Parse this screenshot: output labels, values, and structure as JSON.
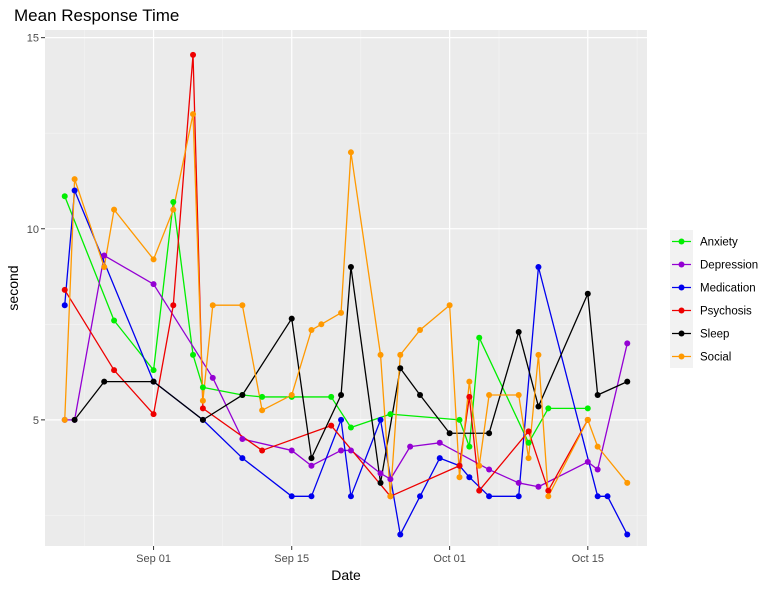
{
  "chart_data": {
    "type": "line",
    "title": "Mean Response Time",
    "xlabel": "Date",
    "ylabel": "second",
    "x_axis_type": "date",
    "year": 2017,
    "xlim": [
      "2017-08-21",
      "2017-10-21"
    ],
    "ylim": [
      1.7,
      15.2
    ],
    "x_ticks": [
      {
        "date": "2017-09-01",
        "label": "Sep 01"
      },
      {
        "date": "2017-09-15",
        "label": "Sep 15"
      },
      {
        "date": "2017-10-01",
        "label": "Oct 01"
      },
      {
        "date": "2017-10-15",
        "label": "Oct 15"
      }
    ],
    "y_ticks": [
      5,
      10,
      15
    ],
    "grid": true,
    "legend_position": "right",
    "series": [
      {
        "name": "Anxiety",
        "color": "#00ee00",
        "points": [
          [
            "2017-08-23",
            10.85
          ],
          [
            "2017-08-28",
            7.6
          ],
          [
            "2017-09-01",
            6.3
          ],
          [
            "2017-09-03",
            10.7
          ],
          [
            "2017-09-05",
            6.7
          ],
          [
            "2017-09-06",
            5.85
          ],
          [
            "2017-09-10",
            5.65
          ],
          [
            "2017-09-12",
            5.6
          ],
          [
            "2017-09-15",
            5.6
          ],
          [
            "2017-09-19",
            5.6
          ],
          [
            "2017-09-21",
            4.8
          ],
          [
            "2017-09-25",
            5.15
          ],
          [
            "2017-10-02",
            5.0
          ],
          [
            "2017-10-03",
            4.3
          ],
          [
            "2017-10-04",
            7.15
          ],
          [
            "2017-10-09",
            4.4
          ],
          [
            "2017-10-11",
            5.3
          ],
          [
            "2017-10-15",
            5.3
          ]
        ]
      },
      {
        "name": "Depression",
        "color": "#9400d3",
        "points": [
          [
            "2017-08-23",
            5.0
          ],
          [
            "2017-08-24",
            5.0
          ],
          [
            "2017-08-27",
            9.3
          ],
          [
            "2017-09-01",
            8.55
          ],
          [
            "2017-09-07",
            6.1
          ],
          [
            "2017-09-10",
            4.5
          ],
          [
            "2017-09-15",
            4.2
          ],
          [
            "2017-09-17",
            3.8
          ],
          [
            "2017-09-20",
            4.2
          ],
          [
            "2017-09-21",
            4.2
          ],
          [
            "2017-09-24",
            3.6
          ],
          [
            "2017-09-25",
            3.45
          ],
          [
            "2017-09-27",
            4.3
          ],
          [
            "2017-09-30",
            4.4
          ],
          [
            "2017-10-05",
            3.7
          ],
          [
            "2017-10-08",
            3.35
          ],
          [
            "2017-10-10",
            3.25
          ],
          [
            "2017-10-15",
            3.9
          ],
          [
            "2017-10-16",
            3.7
          ],
          [
            "2017-10-19",
            7.0
          ]
        ]
      },
      {
        "name": "Medication",
        "color": "#0000ee",
        "points": [
          [
            "2017-08-23",
            8.0
          ],
          [
            "2017-08-24",
            11.0
          ],
          [
            "2017-09-01",
            6.0
          ],
          [
            "2017-09-06",
            5.0
          ],
          [
            "2017-09-10",
            4.0
          ],
          [
            "2017-09-15",
            3.0
          ],
          [
            "2017-09-17",
            3.0
          ],
          [
            "2017-09-20",
            5.0
          ],
          [
            "2017-09-21",
            3.0
          ],
          [
            "2017-09-24",
            5.0
          ],
          [
            "2017-09-26",
            2.0
          ],
          [
            "2017-09-28",
            3.0
          ],
          [
            "2017-09-30",
            4.0
          ],
          [
            "2017-10-02",
            3.8
          ],
          [
            "2017-10-03",
            3.5
          ],
          [
            "2017-10-05",
            3.0
          ],
          [
            "2017-10-08",
            3.0
          ],
          [
            "2017-10-10",
            9.0
          ],
          [
            "2017-10-16",
            3.0
          ],
          [
            "2017-10-17",
            3.0
          ],
          [
            "2017-10-19",
            2.0
          ]
        ]
      },
      {
        "name": "Psychosis",
        "color": "#ee0000",
        "points": [
          [
            "2017-08-23",
            8.4
          ],
          [
            "2017-08-28",
            6.3
          ],
          [
            "2017-09-01",
            5.15
          ],
          [
            "2017-09-03",
            8.0
          ],
          [
            "2017-09-05",
            14.55
          ],
          [
            "2017-09-06",
            5.3
          ],
          [
            "2017-09-12",
            4.2
          ],
          [
            "2017-09-19",
            4.85
          ],
          [
            "2017-09-25",
            3.0
          ],
          [
            "2017-10-02",
            3.8
          ],
          [
            "2017-10-03",
            5.6
          ],
          [
            "2017-10-04",
            3.15
          ],
          [
            "2017-10-09",
            4.7
          ],
          [
            "2017-10-11",
            3.15
          ],
          [
            "2017-10-15",
            5.0
          ]
        ]
      },
      {
        "name": "Sleep",
        "color": "#000000",
        "points": [
          [
            "2017-08-24",
            5.0
          ],
          [
            "2017-08-27",
            6.0
          ],
          [
            "2017-09-01",
            6.0
          ],
          [
            "2017-09-06",
            5.0
          ],
          [
            "2017-09-10",
            5.65
          ],
          [
            "2017-09-15",
            7.65
          ],
          [
            "2017-09-17",
            4.0
          ],
          [
            "2017-09-20",
            5.65
          ],
          [
            "2017-09-21",
            9.0
          ],
          [
            "2017-09-24",
            3.35
          ],
          [
            "2017-09-26",
            6.35
          ],
          [
            "2017-09-28",
            5.65
          ],
          [
            "2017-10-01",
            4.65
          ],
          [
            "2017-10-05",
            4.65
          ],
          [
            "2017-10-08",
            7.3
          ],
          [
            "2017-10-10",
            5.35
          ],
          [
            "2017-10-15",
            8.3
          ],
          [
            "2017-10-16",
            5.65
          ],
          [
            "2017-10-19",
            6.0
          ]
        ]
      },
      {
        "name": "Social",
        "color": "#ff9900",
        "points": [
          [
            "2017-08-23",
            5.0
          ],
          [
            "2017-08-24",
            11.3
          ],
          [
            "2017-08-27",
            9.0
          ],
          [
            "2017-08-28",
            10.5
          ],
          [
            "2017-09-01",
            9.2
          ],
          [
            "2017-09-03",
            10.5
          ],
          [
            "2017-09-05",
            13.0
          ],
          [
            "2017-09-06",
            5.5
          ],
          [
            "2017-09-07",
            8.0
          ],
          [
            "2017-09-10",
            8.0
          ],
          [
            "2017-09-12",
            5.25
          ],
          [
            "2017-09-15",
            5.65
          ],
          [
            "2017-09-17",
            7.35
          ],
          [
            "2017-09-18",
            7.5
          ],
          [
            "2017-09-20",
            7.8
          ],
          [
            "2017-09-21",
            12.0
          ],
          [
            "2017-09-24",
            6.7
          ],
          [
            "2017-09-25",
            3.0
          ],
          [
            "2017-09-26",
            6.7
          ],
          [
            "2017-09-28",
            7.35
          ],
          [
            "2017-10-01",
            8.0
          ],
          [
            "2017-10-02",
            3.5
          ],
          [
            "2017-10-03",
            6.0
          ],
          [
            "2017-10-04",
            3.8
          ],
          [
            "2017-10-05",
            5.65
          ],
          [
            "2017-10-08",
            5.65
          ],
          [
            "2017-10-09",
            4.0
          ],
          [
            "2017-10-10",
            6.7
          ],
          [
            "2017-10-11",
            3.0
          ],
          [
            "2017-10-15",
            5.0
          ],
          [
            "2017-10-16",
            4.3
          ],
          [
            "2017-10-19",
            3.35
          ]
        ]
      }
    ]
  }
}
